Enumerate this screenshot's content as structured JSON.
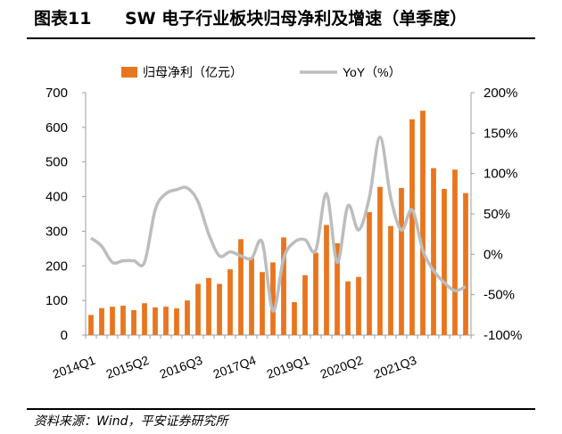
{
  "header": {
    "figure_number": "图表11",
    "title": "SW 电子行业板块归母净利及增速（单季度）"
  },
  "footer": {
    "source": "资料来源：Wind，平安证券研究所"
  },
  "colors": {
    "bar": "#E8761F",
    "line": "#BDBDBD",
    "axis": "#9E9E9E"
  },
  "chart_data": {
    "type": "bar",
    "title": "",
    "legend_position": "top",
    "grid": false,
    "x_tick_labels": [
      "2014Q1",
      "2015Q2",
      "2016Q3",
      "2017Q4",
      "2019Q1",
      "2020Q2",
      "2021Q3"
    ],
    "categories": [
      "2014Q1",
      "2014Q2",
      "2014Q3",
      "2014Q4",
      "2015Q1",
      "2015Q2",
      "2015Q3",
      "2015Q4",
      "2016Q1",
      "2016Q2",
      "2016Q3",
      "2016Q4",
      "2017Q1",
      "2017Q2",
      "2017Q3",
      "2017Q4",
      "2018Q1",
      "2018Q2",
      "2018Q3",
      "2018Q4",
      "2019Q1",
      "2019Q2",
      "2019Q3",
      "2019Q4",
      "2020Q1",
      "2020Q2",
      "2020Q3",
      "2020Q4",
      "2021Q1",
      "2021Q2",
      "2021Q3",
      "2021Q4",
      "2022Q1",
      "2022Q2",
      "2022Q3",
      "2022Q4"
    ],
    "y_left": {
      "ticks": [
        "0",
        "100",
        "200",
        "300",
        "400",
        "500",
        "600",
        "700"
      ],
      "range": [
        0,
        700
      ]
    },
    "y_right": {
      "ticks": [
        "-100%",
        "-50%",
        "0%",
        "50%",
        "100%",
        "150%",
        "200%"
      ],
      "range": [
        -100,
        200
      ]
    },
    "series": [
      {
        "name": "归母净利（亿元）",
        "kind": "bar",
        "axis": "left",
        "values": [
          58,
          78,
          82,
          85,
          72,
          92,
          80,
          82,
          77,
          100,
          148,
          165,
          148,
          190,
          277,
          225,
          182,
          210,
          282,
          95,
          173,
          238,
          318,
          265,
          155,
          168,
          355,
          428,
          315,
          425,
          623,
          648,
          482,
          422,
          478,
          410
        ]
      },
      {
        "name": "YoY（%）",
        "kind": "line",
        "axis": "right",
        "values": [
          20,
          10,
          -10,
          -8,
          -8,
          -10,
          55,
          75,
          80,
          82,
          65,
          25,
          -2,
          3,
          -2,
          -5,
          15,
          -70,
          -5,
          15,
          18,
          5,
          75,
          -10,
          60,
          30,
          70,
          145,
          70,
          30,
          55,
          5,
          -20,
          -35,
          -45,
          -40
        ]
      }
    ]
  }
}
